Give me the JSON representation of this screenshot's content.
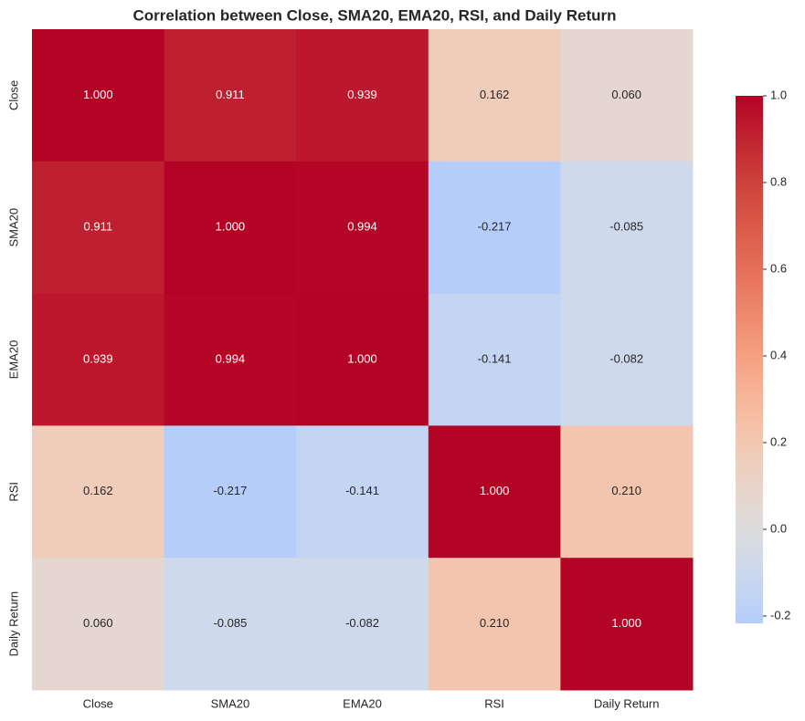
{
  "chart_data": {
    "type": "heatmap",
    "title": "Correlation between Close, SMA20, EMA20, RSI, and Daily Return",
    "categories": [
      "Close",
      "SMA20",
      "EMA20",
      "RSI",
      "Daily Return"
    ],
    "values": [
      [
        1.0,
        0.911,
        0.939,
        0.162,
        0.06
      ],
      [
        0.911,
        1.0,
        0.994,
        -0.217,
        -0.085
      ],
      [
        0.939,
        0.994,
        1.0,
        -0.141,
        -0.082
      ],
      [
        0.162,
        -0.217,
        -0.141,
        1.0,
        0.21
      ],
      [
        0.06,
        -0.085,
        -0.082,
        0.21,
        1.0
      ]
    ],
    "value_labels": [
      [
        "1.000",
        "0.911",
        "0.939",
        "0.162",
        "0.060"
      ],
      [
        "0.911",
        "1.000",
        "0.994",
        "-0.217",
        "-0.085"
      ],
      [
        "0.939",
        "0.994",
        "1.000",
        "-0.141",
        "-0.082"
      ],
      [
        "0.162",
        "-0.217",
        "-0.141",
        "1.000",
        "0.210"
      ],
      [
        "0.060",
        "-0.085",
        "-0.082",
        "0.210",
        "1.000"
      ]
    ],
    "colormap": "coolwarm",
    "center": 0,
    "clim": [
      -0.217,
      1.0
    ],
    "cticks": [
      -0.2,
      {
        "value": 0,
        "label": "0.0"
      },
      0.2,
      0.4,
      0.6,
      0.8,
      {
        "value": 1,
        "label": "1.0"
      }
    ]
  }
}
